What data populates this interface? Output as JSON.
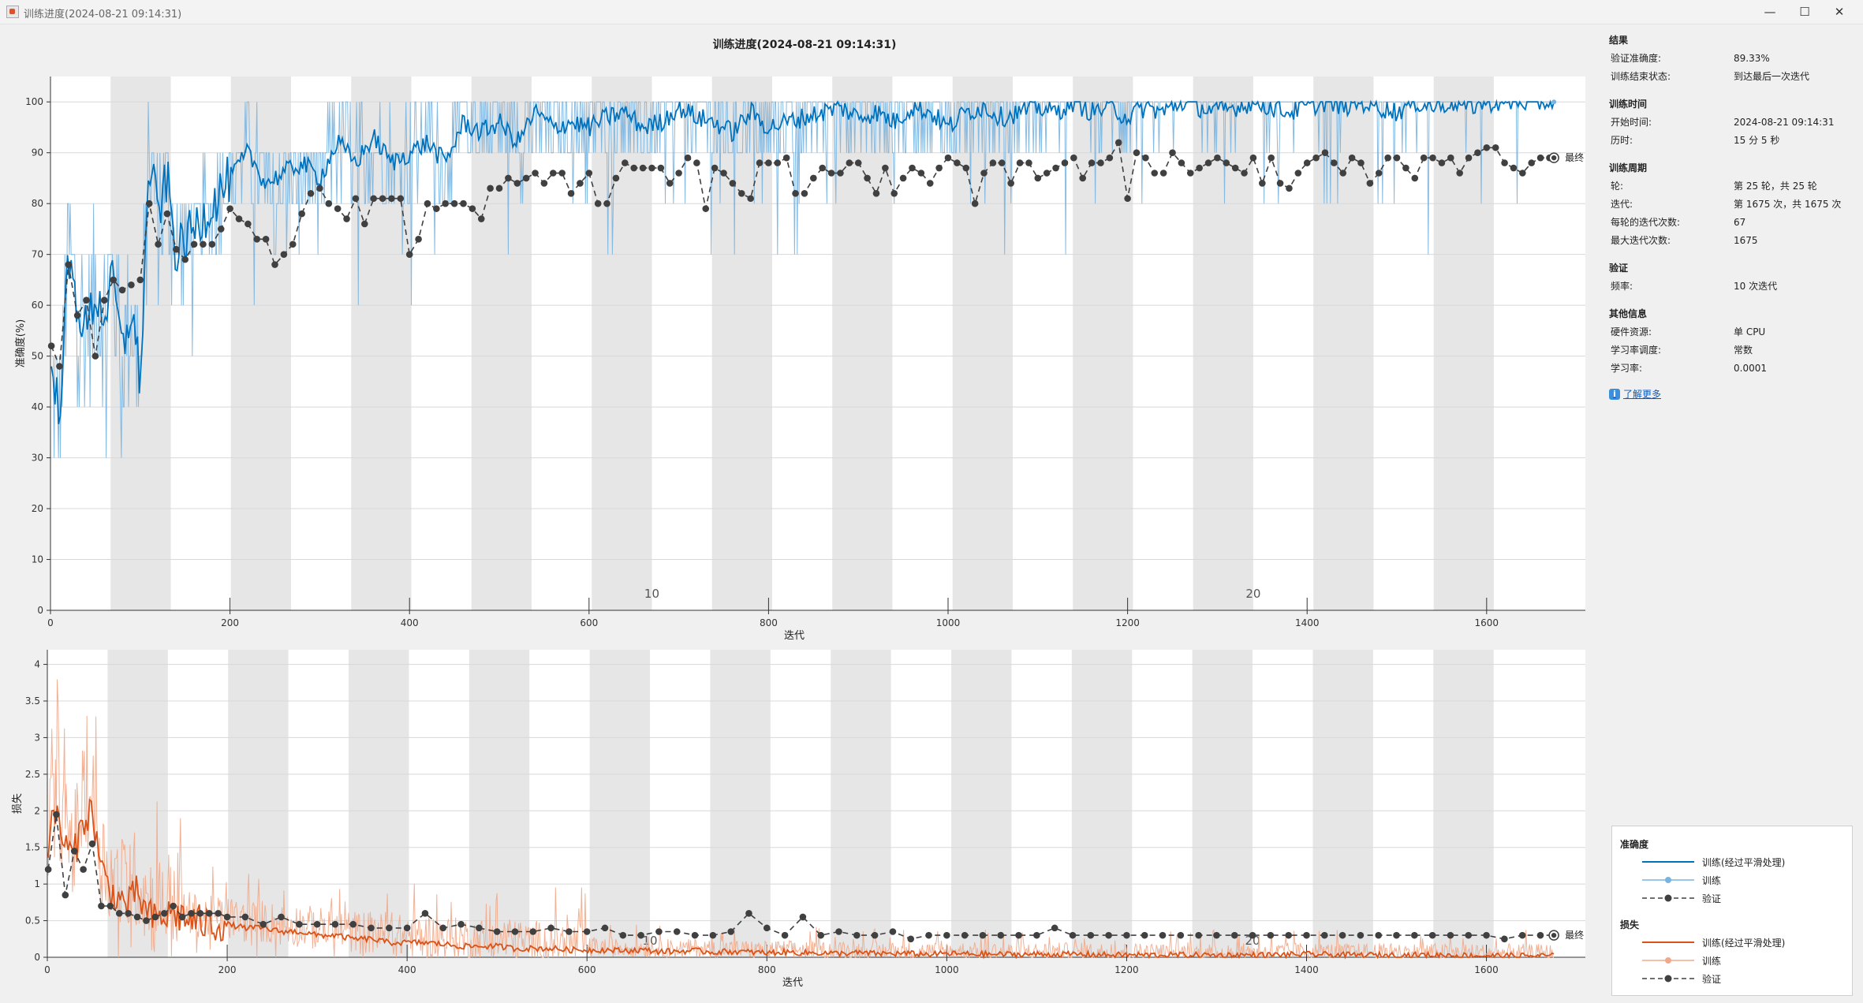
{
  "window": {
    "title": "训练进度(2024-08-21 09:14:31)",
    "controls": {
      "minimize": "—",
      "maximize": "☐",
      "close": "✕"
    }
  },
  "plot_title": "训练进度(2024-08-21 09:14:31)",
  "info": {
    "results": {
      "header": "结果",
      "rows": [
        {
          "label": "验证准确度:",
          "value": "89.33%"
        },
        {
          "label": "训练结束状态:",
          "value": "到达最后一次迭代"
        }
      ]
    },
    "time": {
      "header": "训练时间",
      "rows": [
        {
          "label": "开始时间:",
          "value": "2024-08-21 09:14:31"
        },
        {
          "label": "历时:",
          "value": "15 分 5 秒"
        }
      ]
    },
    "cycle": {
      "header": "训练周期",
      "rows": [
        {
          "label": "轮:",
          "value": "第 25 轮，共 25 轮"
        },
        {
          "label": "迭代:",
          "value": "第 1675 次，共 1675 次"
        },
        {
          "label": "每轮的迭代次数:",
          "value": "67"
        },
        {
          "label": "最大迭代次数:",
          "value": "1675"
        }
      ]
    },
    "validation": {
      "header": "验证",
      "rows": [
        {
          "label": "频率:",
          "value": "10 次迭代"
        }
      ]
    },
    "other": {
      "header": "其他信息",
      "rows": [
        {
          "label": "硬件资源:",
          "value": "单 CPU"
        },
        {
          "label": "学习率调度:",
          "value": "常数"
        },
        {
          "label": "学习率:",
          "value": "0.0001"
        }
      ]
    },
    "learn_more": "了解更多",
    "learn_more_icon": "info-icon"
  },
  "legend": {
    "accuracy_header": "准确度",
    "loss_header": "损失",
    "smoothed": "训练(经过平滑处理)",
    "train": "训练",
    "validation": "验证"
  },
  "colors": {
    "acc_smooth": "#0072bd",
    "acc_raw": "#79b4e0",
    "loss_smooth": "#d95319",
    "loss_raw": "#f0a98a",
    "validation": "#404040",
    "epoch_band": "#e6e6e6"
  },
  "chart_data": [
    {
      "type": "line",
      "xlabel": "迭代",
      "ylabel": "准确度(%)",
      "xlim": [
        0,
        1710
      ],
      "ylim": [
        0,
        105
      ],
      "xticks": [
        0,
        200,
        400,
        600,
        800,
        1000,
        1200,
        1400,
        1600
      ],
      "yticks": [
        0,
        10,
        20,
        30,
        40,
        50,
        60,
        70,
        80,
        90,
        100
      ],
      "iterations_per_epoch": 67,
      "epochs": 25,
      "epoch_labels": [
        {
          "epoch": 10,
          "text": "10"
        },
        {
          "epoch": 20,
          "text": "20"
        }
      ],
      "final_label": "最终",
      "validation_final": 89.33,
      "train_final": 100,
      "grid": true,
      "series": [
        {
          "name": "训练(经过平滑处理)",
          "style": "smoothed",
          "x": [
            1,
            10,
            20,
            30,
            40,
            50,
            60,
            70,
            80,
            90,
            100,
            110,
            120,
            130,
            140,
            160,
            180,
            200,
            220,
            240,
            260,
            280,
            300,
            320,
            340,
            360,
            380,
            400,
            420,
            440,
            460,
            480,
            500,
            520,
            540,
            560,
            580,
            600,
            620,
            640,
            660,
            680,
            700,
            720,
            740,
            760,
            780,
            800,
            820,
            840,
            860,
            880,
            900,
            920,
            940,
            960,
            980,
            1000,
            1020,
            1040,
            1060,
            1080,
            1100,
            1120,
            1140,
            1160,
            1180,
            1200,
            1220,
            1240,
            1260,
            1280,
            1300,
            1320,
            1340,
            1360,
            1380,
            1400,
            1420,
            1440,
            1460,
            1480,
            1500,
            1520,
            1540,
            1560,
            1580,
            1600,
            1620,
            1640,
            1660,
            1675
          ],
          "values": [
            45,
            40,
            68,
            60,
            55,
            62,
            58,
            65,
            50,
            60,
            45,
            88,
            78,
            85,
            70,
            75,
            80,
            85,
            90,
            84,
            86,
            88,
            85,
            92,
            88,
            93,
            88,
            90,
            92,
            88,
            96,
            94,
            96,
            92,
            98,
            95,
            96,
            95,
            97,
            98,
            95,
            96,
            99,
            97,
            96,
            94,
            98,
            95,
            96,
            97,
            98,
            99,
            97,
            98,
            96,
            99,
            98,
            95,
            98,
            99,
            97,
            98,
            99,
            98,
            100,
            98,
            99,
            97,
            99,
            98,
            100,
            99,
            98,
            99,
            100,
            99,
            98,
            99,
            100,
            99,
            100,
            99,
            98,
            100,
            99,
            100,
            99,
            100,
            100,
            100,
            100,
            100
          ]
        },
        {
          "name": "验证",
          "style": "validation",
          "x": [
            1,
            10,
            20,
            30,
            40,
            50,
            60,
            70,
            80,
            90,
            100,
            110,
            120,
            130,
            140,
            150,
            160,
            170,
            180,
            190,
            200,
            210,
            220,
            230,
            240,
            250,
            260,
            270,
            280,
            290,
            300,
            310,
            320,
            330,
            340,
            350,
            360,
            370,
            380,
            390,
            400,
            410,
            420,
            430,
            440,
            450,
            460,
            470,
            480,
            490,
            500,
            510,
            520,
            530,
            540,
            550,
            560,
            570,
            580,
            590,
            600,
            610,
            620,
            630,
            640,
            650,
            660,
            670,
            680,
            690,
            700,
            710,
            720,
            730,
            740,
            750,
            760,
            770,
            780,
            790,
            800,
            810,
            820,
            830,
            840,
            850,
            860,
            870,
            880,
            890,
            900,
            910,
            920,
            930,
            940,
            950,
            960,
            970,
            980,
            990,
            1000,
            1010,
            1020,
            1030,
            1040,
            1050,
            1060,
            1070,
            1080,
            1090,
            1100,
            1110,
            1120,
            1130,
            1140,
            1150,
            1160,
            1170,
            1180,
            1190,
            1200,
            1210,
            1220,
            1230,
            1240,
            1250,
            1260,
            1270,
            1280,
            1290,
            1300,
            1310,
            1320,
            1330,
            1340,
            1350,
            1360,
            1370,
            1380,
            1390,
            1400,
            1410,
            1420,
            1430,
            1440,
            1450,
            1460,
            1470,
            1480,
            1490,
            1500,
            1510,
            1520,
            1530,
            1540,
            1550,
            1560,
            1570,
            1580,
            1590,
            1600,
            1610,
            1620,
            1630,
            1640,
            1650,
            1660,
            1670,
            1675
          ],
          "values": [
            52,
            48,
            68,
            58,
            61,
            50,
            61,
            65,
            63,
            64,
            65,
            80,
            72,
            78,
            71,
            69,
            72,
            72,
            72,
            75,
            79,
            77,
            76,
            73,
            73,
            68,
            70,
            72,
            78,
            82,
            83,
            80,
            79,
            77,
            81,
            76,
            81,
            81,
            81,
            81,
            70,
            73,
            80,
            79,
            80,
            80,
            80,
            79,
            77,
            83,
            83,
            85,
            84,
            85,
            86,
            84,
            86,
            86,
            82,
            84,
            86,
            80,
            80,
            85,
            88,
            87,
            87,
            87,
            87,
            84,
            86,
            89,
            88,
            79,
            87,
            86,
            84,
            82,
            81,
            88,
            88,
            88,
            89,
            82,
            82,
            85,
            87,
            86,
            86,
            88,
            88,
            85,
            82,
            87,
            82,
            85,
            87,
            86,
            84,
            87,
            89,
            88,
            87,
            80,
            86,
            88,
            88,
            84,
            88,
            88,
            85,
            86,
            87,
            88,
            89,
            85,
            88,
            88,
            89,
            92,
            81,
            90,
            89,
            86,
            86,
            90,
            88,
            86,
            87,
            88,
            89,
            88,
            87,
            86,
            89,
            84,
            89,
            84,
            83,
            86,
            88,
            89,
            90,
            88,
            86,
            89,
            88,
            84,
            86,
            89,
            89,
            87,
            85,
            89,
            89,
            88,
            89,
            86,
            89,
            90,
            91,
            91,
            88,
            87,
            86,
            88,
            89,
            89,
            89
          ]
        }
      ]
    },
    {
      "type": "line",
      "xlabel": "迭代",
      "ylabel": "损失",
      "xlim": [
        0,
        1710
      ],
      "ylim": [
        0,
        4.2
      ],
      "xticks": [
        0,
        200,
        400,
        600,
        800,
        1000,
        1200,
        1400,
        1600
      ],
      "yticks": [
        0,
        0.5,
        1,
        1.5,
        2,
        2.5,
        3,
        3.5,
        4
      ],
      "ytick_labels": [
        "0",
        "0.5",
        "1",
        "1.5",
        "2",
        "2.5",
        "3",
        "3.5",
        "4"
      ],
      "final_label": "最终",
      "grid": true,
      "series": [
        {
          "name": "训练(经过平滑处理)",
          "style": "smoothed",
          "x": [
            1,
            10,
            20,
            30,
            40,
            50,
            60,
            70,
            80,
            90,
            100,
            110,
            120,
            140,
            160,
            180,
            200,
            220,
            240,
            260,
            280,
            300,
            320,
            340,
            360,
            380,
            400,
            420,
            440,
            460,
            480,
            500,
            520,
            540,
            560,
            580,
            600,
            620,
            640,
            660,
            680,
            700,
            720,
            740,
            760,
            780,
            800,
            820,
            840,
            860,
            880,
            900,
            920,
            940,
            960,
            980,
            1000,
            1050,
            1100,
            1150,
            1200,
            1250,
            1300,
            1350,
            1400,
            1450,
            1500,
            1550,
            1600,
            1650,
            1675
          ],
          "values": [
            1.6,
            2.0,
            1.5,
            1.4,
            1.9,
            2.0,
            1.2,
            0.9,
            0.8,
            0.7,
            0.9,
            0.6,
            0.5,
            0.6,
            0.5,
            0.45,
            0.45,
            0.4,
            0.4,
            0.35,
            0.35,
            0.3,
            0.3,
            0.25,
            0.25,
            0.2,
            0.2,
            0.2,
            0.18,
            0.15,
            0.15,
            0.15,
            0.12,
            0.12,
            0.12,
            0.1,
            0.1,
            0.1,
            0.09,
            0.1,
            0.08,
            0.08,
            0.09,
            0.07,
            0.08,
            0.07,
            0.06,
            0.07,
            0.06,
            0.06,
            0.05,
            0.06,
            0.05,
            0.05,
            0.05,
            0.04,
            0.05,
            0.04,
            0.04,
            0.04,
            0.03,
            0.03,
            0.03,
            0.03,
            0.04,
            0.03,
            0.03,
            0.03,
            0.02,
            0.02,
            0.02
          ]
        },
        {
          "name": "验证",
          "style": "validation",
          "x": [
            1,
            10,
            20,
            30,
            40,
            50,
            60,
            70,
            80,
            90,
            100,
            110,
            120,
            130,
            140,
            150,
            160,
            170,
            180,
            190,
            200,
            220,
            240,
            260,
            280,
            300,
            320,
            340,
            360,
            380,
            400,
            420,
            440,
            460,
            480,
            500,
            520,
            540,
            560,
            580,
            600,
            620,
            640,
            660,
            680,
            700,
            720,
            740,
            760,
            780,
            800,
            820,
            840,
            860,
            880,
            900,
            920,
            940,
            960,
            980,
            1000,
            1020,
            1040,
            1060,
            1080,
            1100,
            1120,
            1140,
            1160,
            1180,
            1200,
            1220,
            1240,
            1260,
            1280,
            1300,
            1320,
            1340,
            1360,
            1380,
            1400,
            1420,
            1440,
            1460,
            1480,
            1500,
            1520,
            1540,
            1560,
            1580,
            1600,
            1620,
            1640,
            1660,
            1675
          ],
          "values": [
            1.2,
            1.95,
            0.85,
            1.45,
            1.2,
            1.55,
            0.7,
            0.7,
            0.6,
            0.6,
            0.55,
            0.5,
            0.55,
            0.6,
            0.7,
            0.55,
            0.6,
            0.6,
            0.6,
            0.6,
            0.55,
            0.55,
            0.45,
            0.55,
            0.45,
            0.45,
            0.45,
            0.45,
            0.4,
            0.4,
            0.4,
            0.6,
            0.4,
            0.45,
            0.4,
            0.35,
            0.35,
            0.35,
            0.4,
            0.35,
            0.35,
            0.4,
            0.3,
            0.3,
            0.35,
            0.35,
            0.3,
            0.3,
            0.35,
            0.6,
            0.4,
            0.3,
            0.55,
            0.3,
            0.35,
            0.3,
            0.3,
            0.35,
            0.25,
            0.3,
            0.3,
            0.3,
            0.3,
            0.3,
            0.3,
            0.3,
            0.4,
            0.3,
            0.3,
            0.3,
            0.3,
            0.3,
            0.3,
            0.3,
            0.3,
            0.3,
            0.3,
            0.3,
            0.3,
            0.3,
            0.3,
            0.3,
            0.3,
            0.3,
            0.3,
            0.3,
            0.3,
            0.3,
            0.3,
            0.3,
            0.3,
            0.25,
            0.3,
            0.3,
            0.3
          ]
        }
      ]
    }
  ]
}
